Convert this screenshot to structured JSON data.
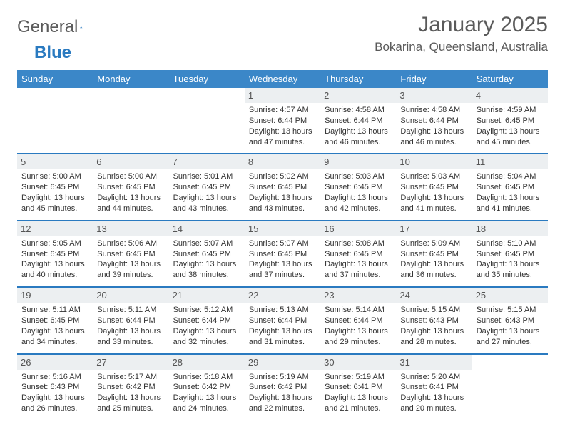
{
  "logo": {
    "word1": "General",
    "word2": "Blue"
  },
  "title": "January 2025",
  "location": "Bokarina, Queensland, Australia",
  "colors": {
    "header_bg": "#3b87c8",
    "header_text": "#ffffff",
    "week_border": "#2a7ac0",
    "daynum_bg": "#eceff1",
    "text": "#333333",
    "title_text": "#5a5a5a"
  },
  "day_names": [
    "Sunday",
    "Monday",
    "Tuesday",
    "Wednesday",
    "Thursday",
    "Friday",
    "Saturday"
  ],
  "weeks": [
    [
      {
        "empty": true
      },
      {
        "empty": true
      },
      {
        "empty": true
      },
      {
        "day": "1",
        "sunrise": "Sunrise: 4:57 AM",
        "sunset": "Sunset: 6:44 PM",
        "daylight1": "Daylight: 13 hours",
        "daylight2": "and 47 minutes."
      },
      {
        "day": "2",
        "sunrise": "Sunrise: 4:58 AM",
        "sunset": "Sunset: 6:44 PM",
        "daylight1": "Daylight: 13 hours",
        "daylight2": "and 46 minutes."
      },
      {
        "day": "3",
        "sunrise": "Sunrise: 4:58 AM",
        "sunset": "Sunset: 6:44 PM",
        "daylight1": "Daylight: 13 hours",
        "daylight2": "and 46 minutes."
      },
      {
        "day": "4",
        "sunrise": "Sunrise: 4:59 AM",
        "sunset": "Sunset: 6:45 PM",
        "daylight1": "Daylight: 13 hours",
        "daylight2": "and 45 minutes."
      }
    ],
    [
      {
        "day": "5",
        "sunrise": "Sunrise: 5:00 AM",
        "sunset": "Sunset: 6:45 PM",
        "daylight1": "Daylight: 13 hours",
        "daylight2": "and 45 minutes."
      },
      {
        "day": "6",
        "sunrise": "Sunrise: 5:00 AM",
        "sunset": "Sunset: 6:45 PM",
        "daylight1": "Daylight: 13 hours",
        "daylight2": "and 44 minutes."
      },
      {
        "day": "7",
        "sunrise": "Sunrise: 5:01 AM",
        "sunset": "Sunset: 6:45 PM",
        "daylight1": "Daylight: 13 hours",
        "daylight2": "and 43 minutes."
      },
      {
        "day": "8",
        "sunrise": "Sunrise: 5:02 AM",
        "sunset": "Sunset: 6:45 PM",
        "daylight1": "Daylight: 13 hours",
        "daylight2": "and 43 minutes."
      },
      {
        "day": "9",
        "sunrise": "Sunrise: 5:03 AM",
        "sunset": "Sunset: 6:45 PM",
        "daylight1": "Daylight: 13 hours",
        "daylight2": "and 42 minutes."
      },
      {
        "day": "10",
        "sunrise": "Sunrise: 5:03 AM",
        "sunset": "Sunset: 6:45 PM",
        "daylight1": "Daylight: 13 hours",
        "daylight2": "and 41 minutes."
      },
      {
        "day": "11",
        "sunrise": "Sunrise: 5:04 AM",
        "sunset": "Sunset: 6:45 PM",
        "daylight1": "Daylight: 13 hours",
        "daylight2": "and 41 minutes."
      }
    ],
    [
      {
        "day": "12",
        "sunrise": "Sunrise: 5:05 AM",
        "sunset": "Sunset: 6:45 PM",
        "daylight1": "Daylight: 13 hours",
        "daylight2": "and 40 minutes."
      },
      {
        "day": "13",
        "sunrise": "Sunrise: 5:06 AM",
        "sunset": "Sunset: 6:45 PM",
        "daylight1": "Daylight: 13 hours",
        "daylight2": "and 39 minutes."
      },
      {
        "day": "14",
        "sunrise": "Sunrise: 5:07 AM",
        "sunset": "Sunset: 6:45 PM",
        "daylight1": "Daylight: 13 hours",
        "daylight2": "and 38 minutes."
      },
      {
        "day": "15",
        "sunrise": "Sunrise: 5:07 AM",
        "sunset": "Sunset: 6:45 PM",
        "daylight1": "Daylight: 13 hours",
        "daylight2": "and 37 minutes."
      },
      {
        "day": "16",
        "sunrise": "Sunrise: 5:08 AM",
        "sunset": "Sunset: 6:45 PM",
        "daylight1": "Daylight: 13 hours",
        "daylight2": "and 37 minutes."
      },
      {
        "day": "17",
        "sunrise": "Sunrise: 5:09 AM",
        "sunset": "Sunset: 6:45 PM",
        "daylight1": "Daylight: 13 hours",
        "daylight2": "and 36 minutes."
      },
      {
        "day": "18",
        "sunrise": "Sunrise: 5:10 AM",
        "sunset": "Sunset: 6:45 PM",
        "daylight1": "Daylight: 13 hours",
        "daylight2": "and 35 minutes."
      }
    ],
    [
      {
        "day": "19",
        "sunrise": "Sunrise: 5:11 AM",
        "sunset": "Sunset: 6:45 PM",
        "daylight1": "Daylight: 13 hours",
        "daylight2": "and 34 minutes."
      },
      {
        "day": "20",
        "sunrise": "Sunrise: 5:11 AM",
        "sunset": "Sunset: 6:44 PM",
        "daylight1": "Daylight: 13 hours",
        "daylight2": "and 33 minutes."
      },
      {
        "day": "21",
        "sunrise": "Sunrise: 5:12 AM",
        "sunset": "Sunset: 6:44 PM",
        "daylight1": "Daylight: 13 hours",
        "daylight2": "and 32 minutes."
      },
      {
        "day": "22",
        "sunrise": "Sunrise: 5:13 AM",
        "sunset": "Sunset: 6:44 PM",
        "daylight1": "Daylight: 13 hours",
        "daylight2": "and 31 minutes."
      },
      {
        "day": "23",
        "sunrise": "Sunrise: 5:14 AM",
        "sunset": "Sunset: 6:44 PM",
        "daylight1": "Daylight: 13 hours",
        "daylight2": "and 29 minutes."
      },
      {
        "day": "24",
        "sunrise": "Sunrise: 5:15 AM",
        "sunset": "Sunset: 6:43 PM",
        "daylight1": "Daylight: 13 hours",
        "daylight2": "and 28 minutes."
      },
      {
        "day": "25",
        "sunrise": "Sunrise: 5:15 AM",
        "sunset": "Sunset: 6:43 PM",
        "daylight1": "Daylight: 13 hours",
        "daylight2": "and 27 minutes."
      }
    ],
    [
      {
        "day": "26",
        "sunrise": "Sunrise: 5:16 AM",
        "sunset": "Sunset: 6:43 PM",
        "daylight1": "Daylight: 13 hours",
        "daylight2": "and 26 minutes."
      },
      {
        "day": "27",
        "sunrise": "Sunrise: 5:17 AM",
        "sunset": "Sunset: 6:42 PM",
        "daylight1": "Daylight: 13 hours",
        "daylight2": "and 25 minutes."
      },
      {
        "day": "28",
        "sunrise": "Sunrise: 5:18 AM",
        "sunset": "Sunset: 6:42 PM",
        "daylight1": "Daylight: 13 hours",
        "daylight2": "and 24 minutes."
      },
      {
        "day": "29",
        "sunrise": "Sunrise: 5:19 AM",
        "sunset": "Sunset: 6:42 PM",
        "daylight1": "Daylight: 13 hours",
        "daylight2": "and 22 minutes."
      },
      {
        "day": "30",
        "sunrise": "Sunrise: 5:19 AM",
        "sunset": "Sunset: 6:41 PM",
        "daylight1": "Daylight: 13 hours",
        "daylight2": "and 21 minutes."
      },
      {
        "day": "31",
        "sunrise": "Sunrise: 5:20 AM",
        "sunset": "Sunset: 6:41 PM",
        "daylight1": "Daylight: 13 hours",
        "daylight2": "and 20 minutes."
      },
      {
        "empty": true
      }
    ]
  ]
}
